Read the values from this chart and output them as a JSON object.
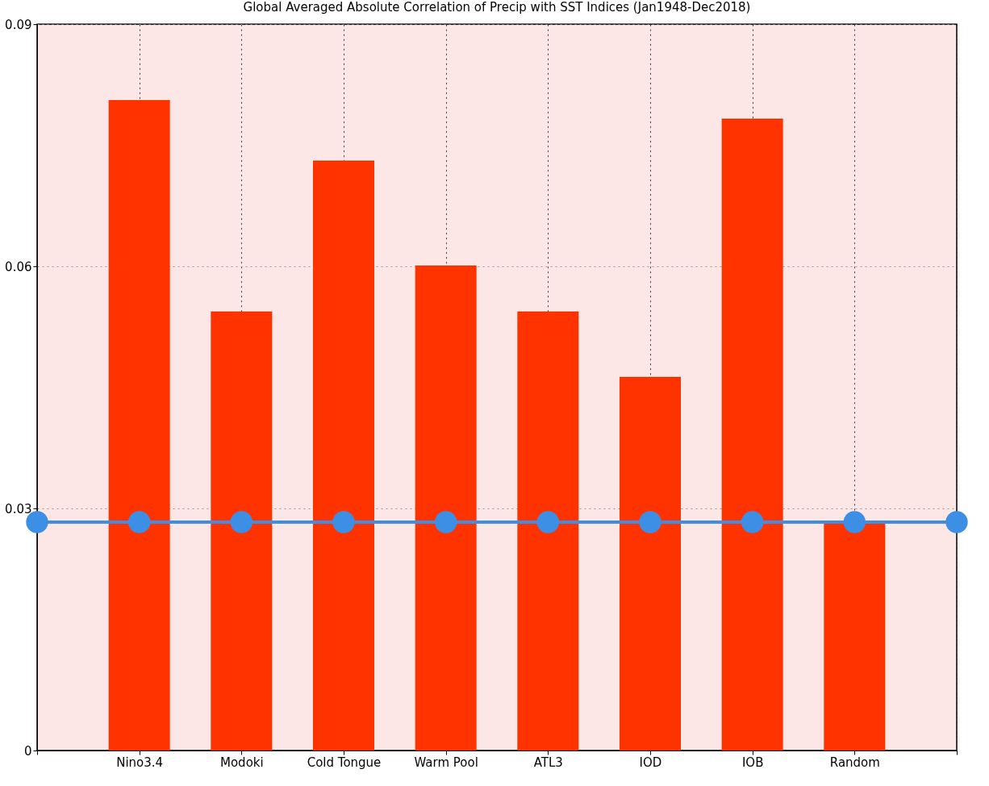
{
  "chart_data": {
    "type": "bar",
    "title": "Global Averaged Absolute Correlation of Precip with SST Indices (Jan1948-Dec2018)",
    "categories": [
      null,
      "Nino3.4",
      "Modoki",
      "Cold Tongue",
      "Warm Pool",
      "ATL3",
      "IOD",
      "IOB",
      "Random",
      null
    ],
    "series": [
      {
        "color": "#ff3300",
        "values": [
          null,
          0.0806,
          0.0544,
          0.0731,
          0.0601,
          0.0544,
          0.0463,
          0.0783,
          0.0282,
          null
        ]
      },
      {
        "type": "line",
        "color": "#3d8fe6",
        "marker": "circle",
        "values": [
          0.0283,
          0.0283,
          0.0283,
          0.0283,
          0.0283,
          0.0283,
          0.0283,
          0.0283,
          0.0283,
          0.0283
        ]
      }
    ],
    "ylim": [
      0,
      0.09
    ],
    "yticks": [
      0,
      0.03,
      0.06,
      0.09
    ],
    "grid": true
  }
}
